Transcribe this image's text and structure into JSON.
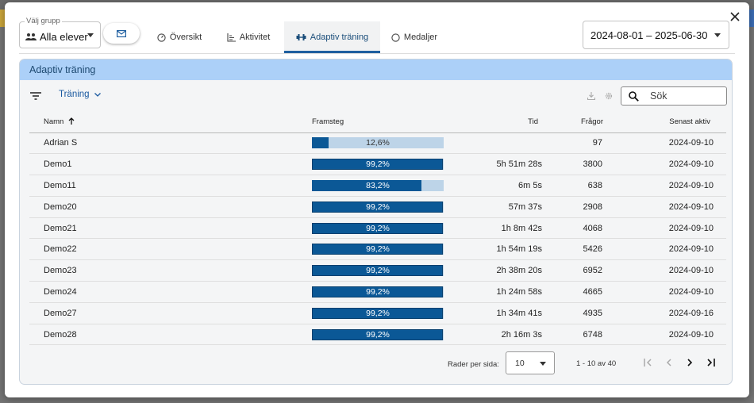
{
  "group_select": {
    "label": "Välj grupp",
    "value": "Alla elever"
  },
  "tabs": [
    {
      "label": "Översikt",
      "icon": "gauge-icon"
    },
    {
      "label": "Aktivitet",
      "icon": "bar-chart-icon"
    },
    {
      "label": "Adaptiv träning",
      "icon": "dumbbell-icon",
      "active": true
    },
    {
      "label": "Medaljer",
      "icon": "circle-icon"
    }
  ],
  "date_range": "2024-08-01 – 2025-06-30",
  "panel": {
    "title": "Adaptiv träning",
    "filter_label": "Träning",
    "search_placeholder": "Sök"
  },
  "table": {
    "headers": {
      "name": "Namn",
      "progress": "Framsteg",
      "time": "Tid",
      "questions": "Frågor",
      "last_active": "Senast aktiv"
    },
    "rows": [
      {
        "name": "Adrian S",
        "progress": 12.6,
        "progress_label": "12,6%",
        "time": "",
        "questions": "97",
        "last_active": "2024-09-10"
      },
      {
        "name": "Demo1",
        "progress": 99.2,
        "progress_label": "99,2%",
        "time": "5h 51m 28s",
        "questions": "3800",
        "last_active": "2024-09-10"
      },
      {
        "name": "Demo11",
        "progress": 83.2,
        "progress_label": "83,2%",
        "time": "6m 5s",
        "questions": "638",
        "last_active": "2024-09-10"
      },
      {
        "name": "Demo20",
        "progress": 99.2,
        "progress_label": "99,2%",
        "time": "57m 37s",
        "questions": "2908",
        "last_active": "2024-09-10"
      },
      {
        "name": "Demo21",
        "progress": 99.2,
        "progress_label": "99,2%",
        "time": "1h 8m 42s",
        "questions": "4068",
        "last_active": "2024-09-10"
      },
      {
        "name": "Demo22",
        "progress": 99.2,
        "progress_label": "99,2%",
        "time": "1h 54m 19s",
        "questions": "5426",
        "last_active": "2024-09-10"
      },
      {
        "name": "Demo23",
        "progress": 99.2,
        "progress_label": "99,2%",
        "time": "2h 38m 20s",
        "questions": "6952",
        "last_active": "2024-09-10"
      },
      {
        "name": "Demo24",
        "progress": 99.2,
        "progress_label": "99,2%",
        "time": "1h 24m 58s",
        "questions": "4665",
        "last_active": "2024-09-10"
      },
      {
        "name": "Demo27",
        "progress": 99.2,
        "progress_label": "99,2%",
        "time": "1h 34m 41s",
        "questions": "4935",
        "last_active": "2024-09-16"
      },
      {
        "name": "Demo28",
        "progress": 99.2,
        "progress_label": "99,2%",
        "time": "2h 16m 3s",
        "questions": "6748",
        "last_active": "2024-09-10"
      }
    ]
  },
  "pagination": {
    "rows_label": "Rader per sida:",
    "rows_value": "10",
    "range": "1 - 10 av 40"
  },
  "colors": {
    "accent": "#1f5fa0",
    "panel_header": "#acd0f8",
    "bar_fill": "#0b5896",
    "bar_track": "#bdd4e8"
  }
}
